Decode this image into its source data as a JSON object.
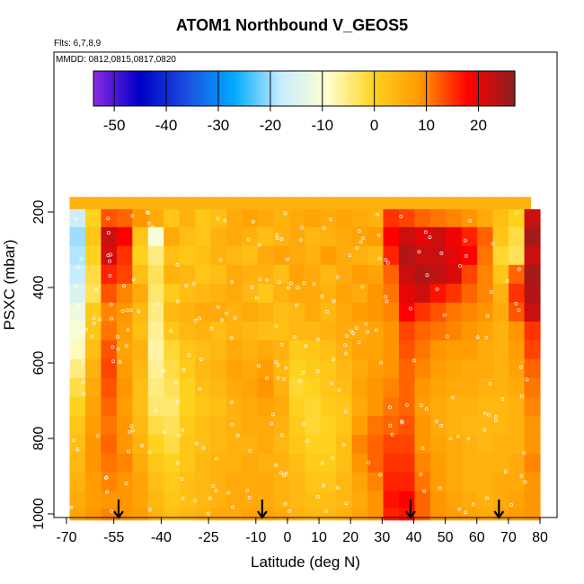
{
  "title": "ATOM1 Northbound V_GEOS5",
  "notes": {
    "flights": "Flts: 6,7,8,9",
    "dates": "MMDD: 0812,0815,0817,0820"
  },
  "colorbar": {
    "ticks": [
      -50,
      -40,
      -30,
      -20,
      -10,
      0,
      10,
      20
    ],
    "range": [
      -54,
      27
    ],
    "colors": [
      "#8a2be2",
      "#0000c8",
      "#1b4fe0",
      "#00aaff",
      "#c8ecff",
      "#ffffd0",
      "#ffd21e",
      "#ff9600",
      "#ff0000",
      "#8b2020"
    ]
  },
  "chart_data": {
    "type": "heatmap",
    "title": "ATOM1 Northbound V_GEOS5",
    "xlabel": "Latitude (deg N)",
    "ylabel": "PSXC (mbar)",
    "xlim": [
      -70,
      82
    ],
    "ylim": [
      1020,
      140
    ],
    "y_reversed": true,
    "x_ticks": [
      -70,
      -55,
      -40,
      -25,
      -10,
      0,
      10,
      20,
      30,
      40,
      50,
      60,
      70,
      80
    ],
    "x_tick_labels": [
      "-70",
      "-55",
      "-40",
      "-25",
      "-10",
      "0",
      "10",
      "20",
      "30",
      "40",
      "50",
      "60",
      "70",
      "80"
    ],
    "y_ticks": [
      200,
      400,
      600,
      800,
      1000
    ],
    "y_tick_labels": [
      "200",
      "400",
      "600",
      "800",
      "1000"
    ],
    "pressure_levels": [
      170,
      215,
      265,
      315,
      365,
      415,
      465,
      515,
      565,
      615,
      665,
      715,
      765,
      815,
      865,
      915,
      965,
      1005
    ],
    "lat_range": [
      -69,
      80
    ],
    "arrows_lat": [
      -53.5,
      -8,
      39,
      67
    ],
    "values": [
      [
        5,
        5,
        5,
        5,
        5,
        5,
        5,
        5,
        5,
        5,
        5,
        5,
        5,
        5,
        5,
        5,
        5,
        5,
        5,
        5,
        5,
        5,
        5,
        5,
        5,
        5,
        5,
        5,
        5,
        5
      ],
      [
        -17,
        0,
        13,
        12,
        9,
        6,
        2,
        5,
        2,
        3,
        6,
        7,
        6,
        5,
        6,
        7,
        6,
        7,
        6,
        5,
        15,
        14,
        12,
        11,
        10,
        9,
        6,
        3,
        0,
        22
      ],
      [
        -20,
        2,
        22,
        18,
        2,
        -10,
        6,
        3,
        2,
        5,
        6,
        5,
        3,
        5,
        6,
        4,
        5,
        6,
        7,
        8,
        18,
        22,
        20,
        22,
        19,
        16,
        12,
        2,
        -2,
        25
      ],
      [
        -19,
        0,
        21,
        15,
        0,
        -5,
        3,
        2,
        3,
        5,
        4,
        3,
        6,
        7,
        6,
        5,
        8,
        6,
        5,
        4,
        16,
        24,
        22,
        22,
        20,
        18,
        11,
        -1,
        -3,
        22
      ],
      [
        -18,
        -2,
        16,
        14,
        3,
        -3,
        5,
        4,
        2,
        3,
        6,
        5,
        5,
        3,
        7,
        6,
        4,
        6,
        8,
        7,
        12,
        22,
        24,
        23,
        21,
        14,
        10,
        2,
        12,
        25
      ],
      [
        -15,
        -3,
        13,
        10,
        6,
        -4,
        1,
        3,
        4,
        5,
        6,
        4,
        2,
        5,
        6,
        6,
        5,
        7,
        6,
        9,
        11,
        20,
        22,
        17,
        15,
        12,
        10,
        5,
        15,
        24
      ],
      [
        -12,
        1,
        10,
        9,
        4,
        -5,
        4,
        5,
        6,
        6,
        5,
        6,
        5,
        3,
        4,
        6,
        4,
        6,
        8,
        9,
        10,
        18,
        15,
        13,
        11,
        10,
        9,
        6,
        13,
        22
      ],
      [
        -10,
        2,
        11,
        8,
        3,
        -6,
        2,
        4,
        5,
        3,
        5,
        4,
        3,
        3,
        4,
        4,
        5,
        6,
        6,
        7,
        9,
        14,
        12,
        11,
        10,
        9,
        7,
        5,
        9,
        15
      ],
      [
        -8,
        3,
        13,
        7,
        5,
        -7,
        -1,
        2,
        3,
        4,
        6,
        5,
        6,
        5,
        1,
        2,
        3,
        5,
        7,
        7,
        9,
        13,
        11,
        9,
        8,
        8,
        6,
        5,
        8,
        14
      ],
      [
        -5,
        5,
        14,
        8,
        4,
        -6,
        -2,
        1,
        4,
        5,
        7,
        6,
        8,
        4,
        0,
        1,
        2,
        4,
        6,
        8,
        9,
        12,
        10,
        8,
        7,
        6,
        6,
        5,
        7,
        12
      ],
      [
        -2,
        6,
        13,
        9,
        3,
        -5,
        -3,
        0,
        3,
        4,
        6,
        7,
        9,
        5,
        -1,
        0,
        2,
        3,
        7,
        9,
        10,
        12,
        9,
        7,
        6,
        6,
        5,
        5,
        6,
        11
      ],
      [
        0,
        7,
        12,
        8,
        3,
        -4,
        -4,
        0,
        2,
        3,
        5,
        6,
        7,
        6,
        0,
        -1,
        1,
        2,
        6,
        9,
        11,
        12,
        8,
        6,
        5,
        5,
        4,
        4,
        5,
        10
      ],
      [
        2,
        8,
        11,
        9,
        4,
        -2,
        -3,
        1,
        3,
        4,
        5,
        6,
        6,
        5,
        1,
        -1,
        0,
        2,
        8,
        11,
        12,
        13,
        9,
        6,
        5,
        4,
        4,
        4,
        5,
        9
      ],
      [
        3,
        9,
        12,
        9,
        5,
        0,
        -2,
        2,
        3,
        4,
        5,
        5,
        6,
        4,
        2,
        0,
        0,
        3,
        10,
        12,
        14,
        14,
        9,
        7,
        6,
        5,
        4,
        5,
        5,
        9
      ],
      [
        4,
        9,
        11,
        10,
        6,
        2,
        0,
        2,
        4,
        5,
        5,
        6,
        5,
        5,
        3,
        1,
        1,
        3,
        9,
        12,
        15,
        15,
        10,
        8,
        6,
        5,
        5,
        5,
        6,
        10
      ],
      [
        5,
        8,
        10,
        9,
        7,
        3,
        1,
        3,
        4,
        5,
        6,
        6,
        6,
        5,
        4,
        2,
        2,
        4,
        7,
        10,
        16,
        16,
        11,
        8,
        6,
        5,
        5,
        6,
        6,
        9
      ],
      [
        6,
        8,
        9,
        9,
        7,
        4,
        2,
        3,
        4,
        5,
        6,
        6,
        6,
        5,
        4,
        3,
        3,
        4,
        6,
        9,
        17,
        18,
        12,
        9,
        7,
        6,
        5,
        6,
        7,
        9
      ],
      [
        7,
        9,
        10,
        9,
        8,
        5,
        3,
        4,
        5,
        6,
        6,
        7,
        7,
        6,
        5,
        4,
        4,
        5,
        7,
        9,
        16,
        17,
        12,
        9,
        8,
        7,
        6,
        7,
        8,
        9
      ]
    ]
  }
}
